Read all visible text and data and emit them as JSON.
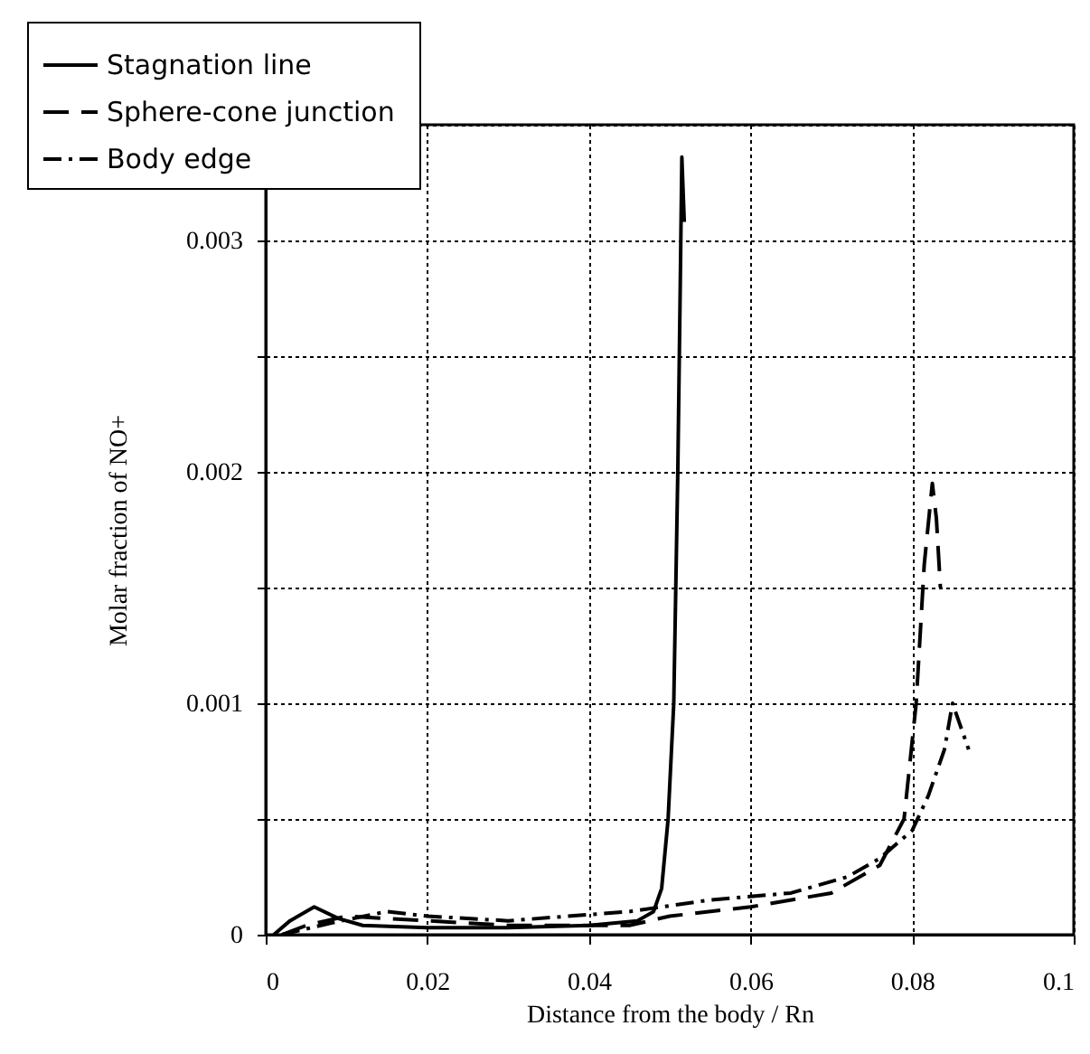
{
  "chart_data": {
    "type": "line",
    "xlabel": "Distance from the body / Rn",
    "ylabel": "Molar fraction of NO+",
    "xlim": [
      0,
      0.1
    ],
    "xticks": [
      0,
      0.02,
      0.04,
      0.06,
      0.08,
      0.1
    ],
    "ylim": [
      0,
      0.0035
    ],
    "yticks": [
      0,
      {
        "value": 0.0005,
        "label": null
      },
      0.001,
      {
        "value": 0.0015,
        "label": null
      },
      0.002,
      {
        "value": 0.0025,
        "label": null
      },
      0.003,
      {
        "value": 0.0035,
        "label": null
      }
    ],
    "grid": true,
    "legend": "top left",
    "marker": "none",
    "series": [
      {
        "name": "Stagnation line",
        "color": "#000000",
        "line_style": "solid",
        "x": [
          0.001,
          0.003,
          0.006,
          0.009,
          0.012,
          0.02,
          0.03,
          0.04,
          0.046,
          0.048,
          0.049,
          0.0498,
          0.0505,
          0.051,
          0.0513,
          0.0515,
          0.0518
        ],
        "values": [
          0,
          6e-05,
          0.00012,
          7e-05,
          4e-05,
          3e-05,
          3e-05,
          4e-05,
          6e-05,
          0.0001,
          0.0002,
          0.0005,
          0.001,
          0.002,
          0.0028,
          0.00336,
          0.00308
        ]
      },
      {
        "name": "Sphere-cone  junction",
        "color": "#000000",
        "line_style": "dashed",
        "x": [
          0.002,
          0.005,
          0.01,
          0.02,
          0.03,
          0.045,
          0.05,
          0.06,
          0.07,
          0.076,
          0.079,
          0.0805,
          0.0815,
          0.0825,
          0.083,
          0.0835
        ],
        "values": [
          0,
          4e-05,
          8e-05,
          6e-05,
          4e-05,
          4e-05,
          8e-05,
          0.00012,
          0.00018,
          0.0003,
          0.0005,
          0.001,
          0.0016,
          0.00195,
          0.0018,
          0.0015
        ]
      },
      {
        "name": "Body edge",
        "color": "#000000",
        "line_style": "dotted",
        "x": [
          0.002,
          0.008,
          0.015,
          0.02,
          0.03,
          0.045,
          0.055,
          0.065,
          0.072,
          0.076,
          0.08,
          0.082,
          0.084,
          0.085,
          0.086,
          0.087
        ],
        "values": [
          0,
          5e-05,
          0.0001,
          8e-05,
          6e-05,
          0.0001,
          0.00015,
          0.00018,
          0.00025,
          0.00033,
          0.00045,
          0.0006,
          0.0008,
          0.001,
          0.0009,
          0.0008
        ]
      }
    ]
  }
}
